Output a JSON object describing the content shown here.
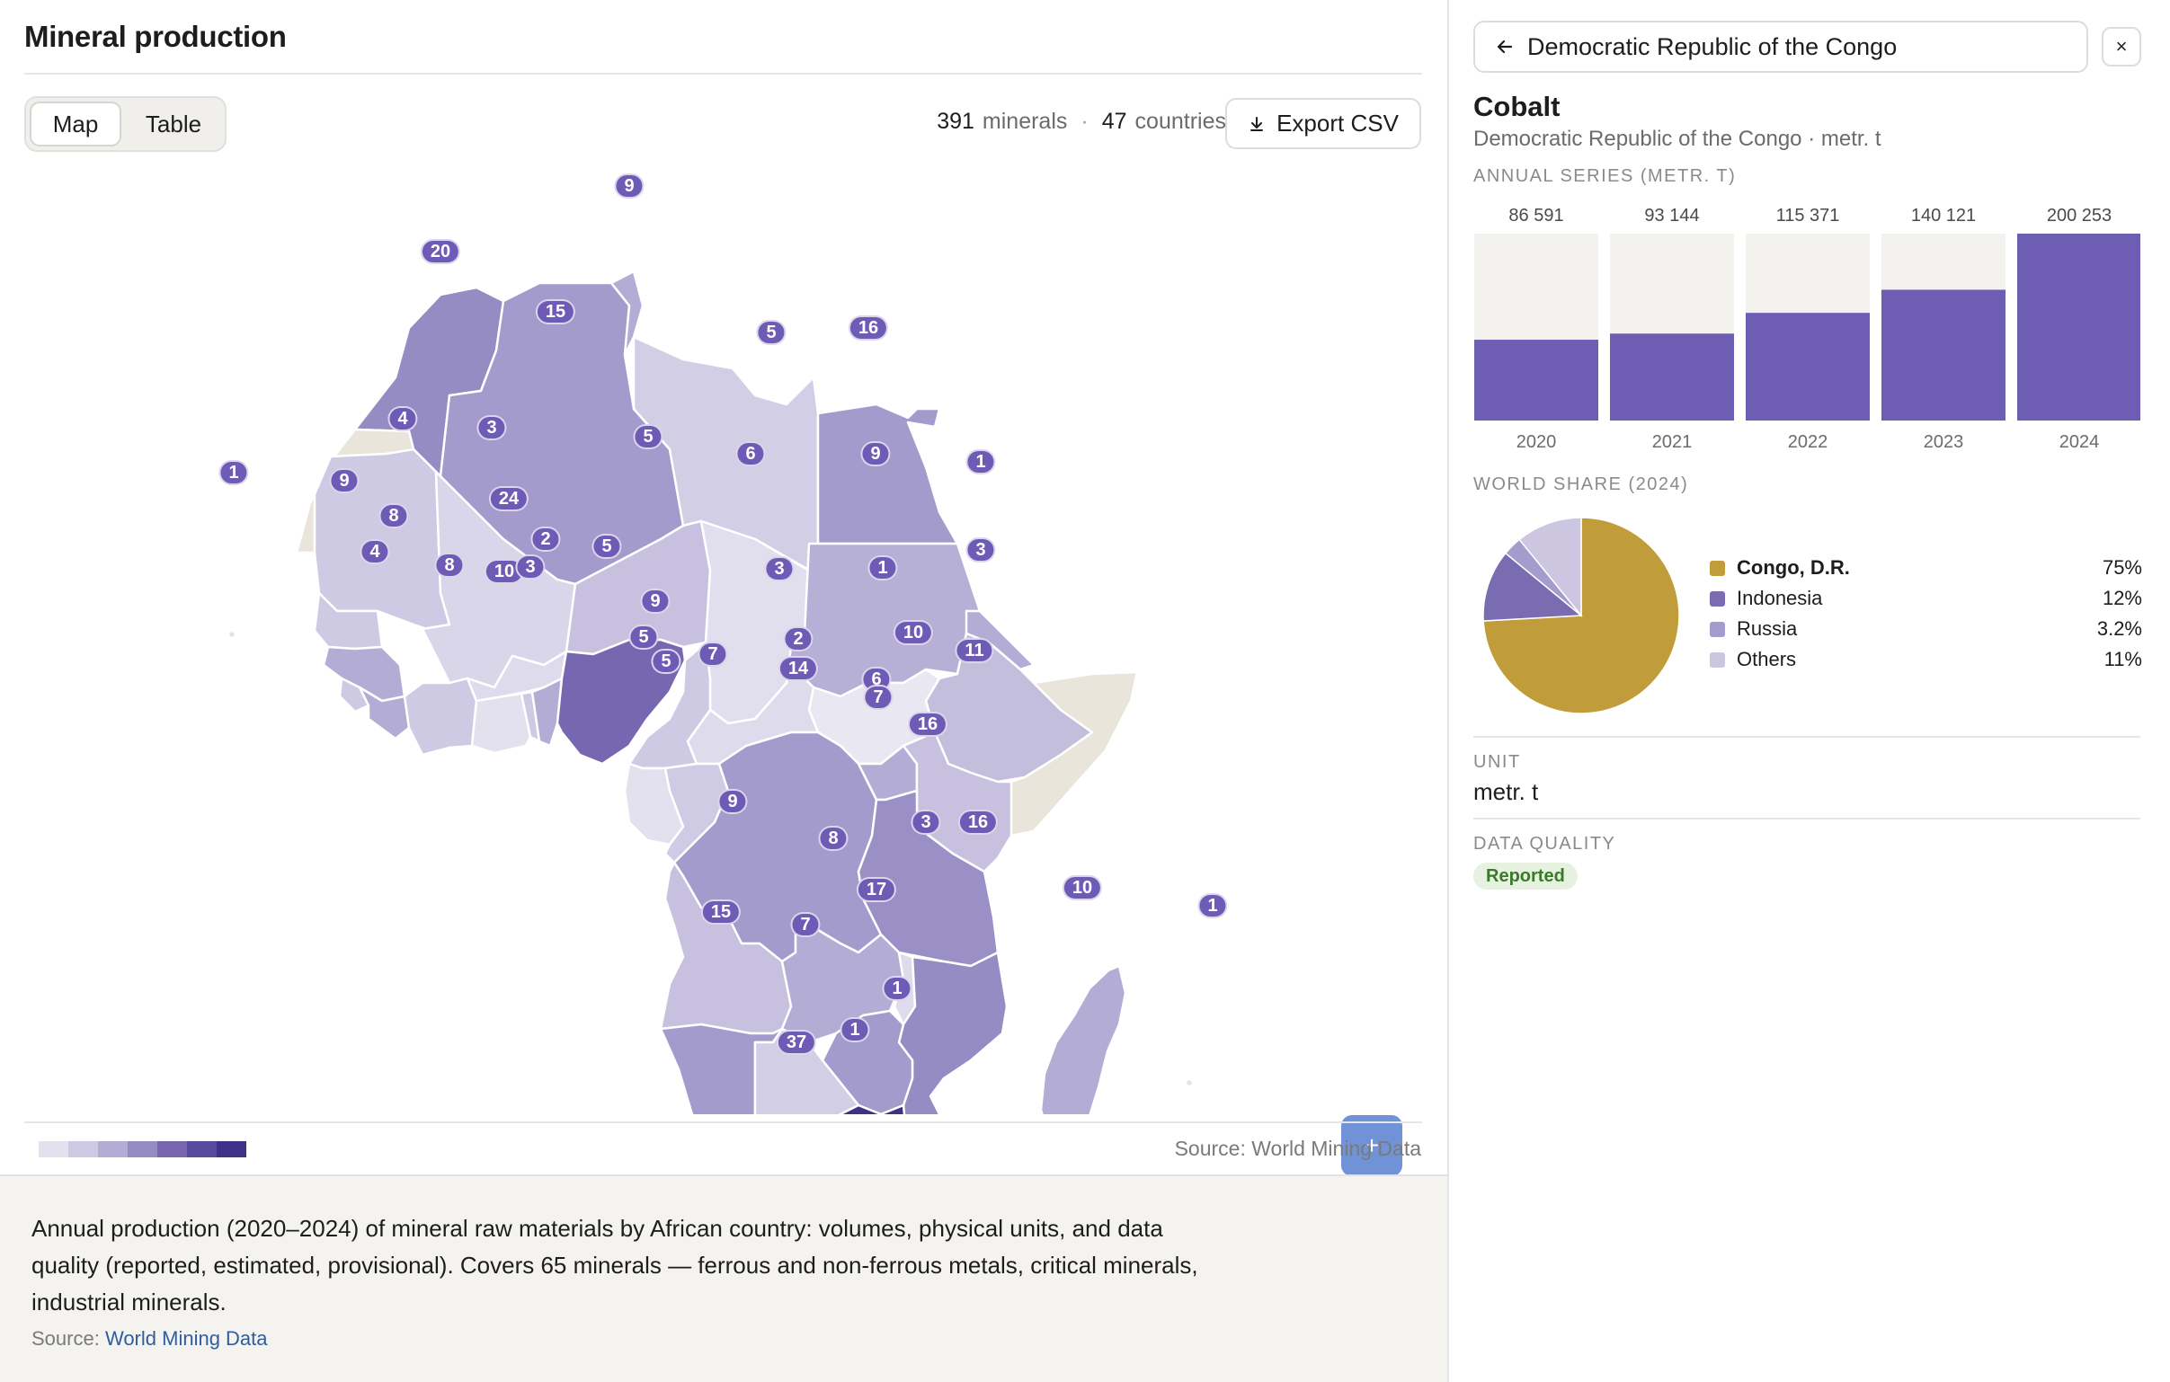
{
  "page": {
    "title": "Mineral production"
  },
  "toolbar": {
    "view_options": [
      "Map",
      "Table"
    ],
    "selected_view": "Map",
    "minerals_count": "391",
    "minerals_label": "minerals",
    "countries_count": "47",
    "countries_label": "countries",
    "separator": "·",
    "export_label": "Export CSV"
  },
  "map": {
    "zoom_in_label": "+",
    "zoom_out_label": "−",
    "source": "Source: World Mining Data",
    "legend_colors": [
      "#e4e1ef",
      "#cfcae3",
      "#b3acd4",
      "#958cc4",
      "#7767b1",
      "#5a4a9f",
      "#3f3188"
    ],
    "no_data_color": "#e9e5da",
    "badges": [
      "9",
      "20",
      "15",
      "5",
      "16",
      "4",
      "3",
      "5",
      "1",
      "9",
      "6",
      "1",
      "9",
      "3",
      "24",
      "5",
      "8",
      "2",
      "4",
      "8",
      "10",
      "3",
      "3",
      "1",
      "9",
      "5",
      "2",
      "5",
      "7",
      "10",
      "11",
      "14",
      "6",
      "7",
      "16",
      "9",
      "8",
      "3",
      "16",
      "17",
      "15",
      "7",
      "10",
      "1",
      "1",
      "1",
      "37"
    ]
  },
  "description": {
    "text": "Annual production (2020–2024) of mineral raw materials by African country: volumes, physical units, and data quality (reported, estimated, provisional). Covers 65 minerals — ferrous and non-ferrous metals, critical minerals, industrial minerals.",
    "source_prefix": "Source:",
    "source_link": "World Mining Data"
  },
  "panel": {
    "country": "Democratic Republic of the Congo",
    "back_icon": "arrow-left-icon",
    "close_icon": "close-icon",
    "close_label": "×",
    "mineral": "Cobalt",
    "subtitle": "Democratic Republic of the Congo · metr. t",
    "series_label": "ANNUAL SERIES (METR. T)",
    "share_label": "WORLD SHARE (2024)",
    "unit_label": "UNIT",
    "unit_value": "metr. t",
    "quality_label": "DATA QUALITY",
    "quality_value": "Reported"
  },
  "chart_data": [
    {
      "type": "bar",
      "title": "ANNUAL SERIES (METR. T)",
      "categories": [
        "2020",
        "2021",
        "2022",
        "2023",
        "2024"
      ],
      "values": [
        86591,
        93144,
        115371,
        140121,
        200253
      ],
      "value_labels": [
        "86 591",
        "93 144",
        "115 371",
        "140 121",
        "200 253"
      ],
      "ylim": [
        0,
        200253
      ],
      "color": "#6d5eb3",
      "track_color": "#f3f2ee"
    },
    {
      "type": "pie",
      "title": "WORLD SHARE (2024)",
      "labels": [
        "Congo, D.R.",
        "Indonesia",
        "Russia",
        "Others"
      ],
      "values": [
        75,
        12,
        3.2,
        11
      ],
      "value_labels": [
        "75%",
        "12%",
        "3.2%",
        "11%"
      ],
      "colors": [
        "#c09c3a",
        "#7a6cb1",
        "#a49ccd",
        "#cdc6e1"
      ],
      "highlight": "Congo, D.R."
    }
  ]
}
